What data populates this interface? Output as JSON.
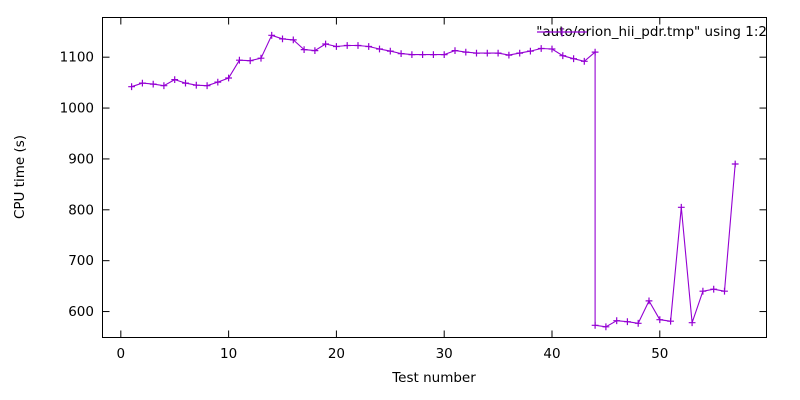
{
  "chart_data": {
    "type": "line",
    "style": "linespoints",
    "title": "",
    "xlabel": "Test number",
    "ylabel": "CPU time (s)",
    "xlim": [
      -1.7,
      59.9
    ],
    "ylim": [
      549,
      1178
    ],
    "xticks": [
      0,
      10,
      20,
      30,
      40,
      50
    ],
    "yticks": [
      600,
      700,
      800,
      900,
      1000,
      1100
    ],
    "grid": false,
    "legend_position": "top-right-inside",
    "background_color": "#ffffff",
    "axis_color": "#000000",
    "series": [
      {
        "name": "\"auto/orion_hii_pdr.tmp\" using 1:2",
        "color": "#9400d3",
        "marker": "plus",
        "points": [
          [
            1,
            1042
          ],
          [
            2,
            1049
          ],
          [
            3,
            1047
          ],
          [
            4,
            1044
          ],
          [
            5,
            1056
          ],
          [
            6,
            1049
          ],
          [
            7,
            1045
          ],
          [
            8,
            1044
          ],
          [
            9,
            1051
          ],
          [
            10,
            1059
          ],
          [
            11,
            1094
          ],
          [
            12,
            1093
          ],
          [
            13,
            1098
          ],
          [
            14,
            1143
          ],
          [
            15,
            1136
          ],
          [
            16,
            1134
          ],
          [
            17,
            1115
          ],
          [
            18,
            1113
          ],
          [
            19,
            1126
          ],
          [
            20,
            1121
          ],
          [
            21,
            1123
          ],
          [
            22,
            1123
          ],
          [
            23,
            1121
          ],
          [
            24,
            1116
          ],
          [
            25,
            1112
          ],
          [
            26,
            1107
          ],
          [
            27,
            1105
          ],
          [
            28,
            1105
          ],
          [
            29,
            1105
          ],
          [
            30,
            1105
          ],
          [
            31,
            1113
          ],
          [
            32,
            1110
          ],
          [
            33,
            1108
          ],
          [
            34,
            1108
          ],
          [
            35,
            1108
          ],
          [
            36,
            1104
          ],
          [
            37,
            1108
          ],
          [
            38,
            1112
          ],
          [
            39,
            1117
          ],
          [
            40,
            1116
          ],
          [
            41,
            1103
          ],
          [
            42,
            1097
          ],
          [
            43,
            1092
          ],
          [
            44,
            1110
          ],
          [
            44,
            573
          ],
          [
            45,
            570
          ],
          [
            46,
            582
          ],
          [
            47,
            580
          ],
          [
            48,
            577
          ],
          [
            49,
            621
          ],
          [
            50,
            584
          ],
          [
            51,
            581
          ],
          [
            52,
            805
          ],
          [
            53,
            578
          ],
          [
            54,
            640
          ],
          [
            55,
            644
          ],
          [
            56,
            640
          ],
          [
            57,
            890
          ]
        ]
      }
    ]
  }
}
